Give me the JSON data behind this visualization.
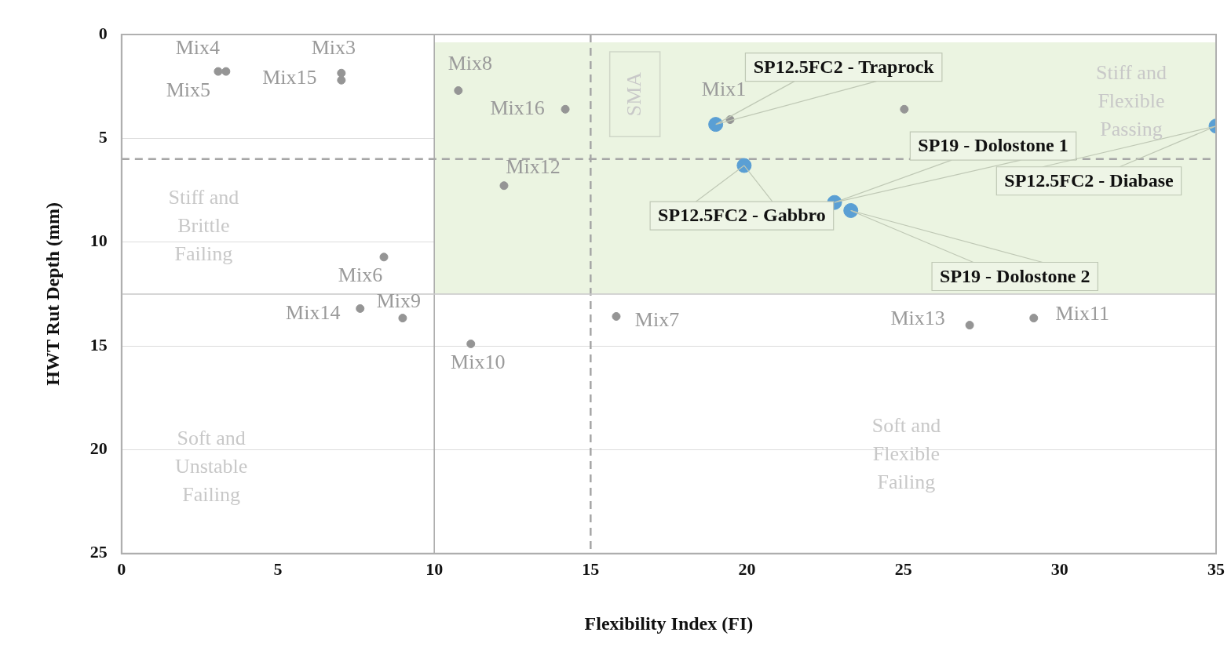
{
  "chart_data": {
    "type": "scatter",
    "xlabel": "Flexibility Index (FI)",
    "ylabel": "HWT Rut Depth (mm)",
    "xlim": [
      0,
      35
    ],
    "xticks": [
      0,
      5,
      10,
      15,
      20,
      25,
      30,
      35
    ],
    "ylim": [
      25,
      0
    ],
    "yticks": [
      0,
      5,
      10,
      15,
      20,
      25
    ],
    "grid": "y",
    "marker": "circle",
    "series": [
      {
        "color": "#959595",
        "x": [
          3.34,
          3.09,
          7.03,
          7.03,
          10.77,
          14.19,
          19.46,
          12.23,
          8.39,
          7.63,
          8.99,
          11.17,
          15.82,
          27.12,
          29.17,
          25.03
        ],
        "values": [
          1.78,
          1.78,
          1.86,
          2.2,
          2.7,
          3.6,
          4.1,
          7.28,
          10.72,
          13.2,
          13.66,
          14.9,
          13.58,
          14.0,
          13.66,
          3.6
        ]
      },
      {
        "color": "#5a9fd4",
        "x": [
          19.0,
          19.91,
          22.8,
          23.32,
          35
        ],
        "values": [
          4.33,
          6.31,
          8.09,
          8.48,
          4.41
        ]
      }
    ],
    "ref_lines": [
      {
        "axis": "x",
        "value": 10,
        "line_style": "solid",
        "color": "#a6a6a6"
      },
      {
        "axis": "x",
        "value": 15,
        "line_style": "dashed",
        "color": "#a6a6a6"
      },
      {
        "axis": "y",
        "value": 6,
        "line_style": "dashed",
        "color": "#a6a6a6"
      },
      {
        "axis": "y",
        "value": 12.5,
        "line_style": "solid",
        "color": "#c8c8c8"
      }
    ],
    "bands": [
      {
        "axis": "x",
        "from": 10,
        "to": 35,
        "label": "Stiff and Flexible Passing",
        "color": "#ebf4e1"
      }
    ],
    "annotations": [
      {
        "text": "Mix4",
        "x": 3.34,
        "y": 1.78
      },
      {
        "text": "Mix5",
        "x": 3.09,
        "y": 1.78
      },
      {
        "text": "Mix3",
        "x": 7.03,
        "y": 1.86
      },
      {
        "text": "Mix15",
        "x": 7.03,
        "y": 2.2
      },
      {
        "text": "Mix8",
        "x": 10.77,
        "y": 2.7
      },
      {
        "text": "Mix16",
        "x": 14.19,
        "y": 3.6
      },
      {
        "text": "Mix1",
        "x": 19.46,
        "y": 4.1
      },
      {
        "text": "Mix12",
        "x": 12.23,
        "y": 7.28
      },
      {
        "text": "Mix6",
        "x": 8.39,
        "y": 10.72
      },
      {
        "text": "Mix14",
        "x": 7.63,
        "y": 13.2
      },
      {
        "text": "Mix9",
        "x": 8.99,
        "y": 13.66
      },
      {
        "text": "Mix10",
        "x": 11.17,
        "y": 14.9
      },
      {
        "text": "Mix7",
        "x": 15.82,
        "y": 13.58
      },
      {
        "text": "Mix13",
        "x": 27.12,
        "y": 14.0
      },
      {
        "text": "Mix11",
        "x": 29.17,
        "y": 13.66
      },
      {
        "text": "SP12.5FC2 - Traprock",
        "x": 19.0,
        "y": 4.33
      },
      {
        "text": "SP12.5FC2 - Gabbro",
        "x": 19.91,
        "y": 6.31
      },
      {
        "text": "SP19 - Dolostone 1",
        "x": 22.8,
        "y": 8.09
      },
      {
        "text": "SP19 - Dolostone 2",
        "x": 23.32,
        "y": 8.48
      },
      {
        "text": "SP12.5FC2 - Diabase",
        "x": 35,
        "y": 4.41
      },
      "Stiff and Brittle Failing",
      "Soft and Unstable Failing",
      "Soft and Flexible Failing",
      "SMA"
    ]
  }
}
